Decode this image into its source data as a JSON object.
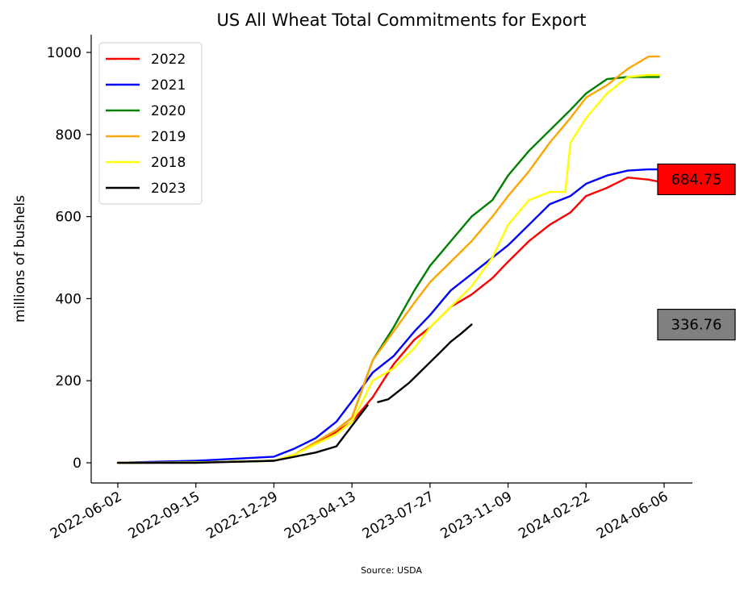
{
  "chart_data": {
    "type": "line",
    "title": "US All Wheat Total Commitments for Export",
    "xlabel": "",
    "ylabel": "millions of bushels",
    "source": "Source: USDA",
    "x_ticks": [
      "2022-06-02",
      "2022-09-15",
      "2022-12-29",
      "2023-04-13",
      "2023-07-27",
      "2023-11-09",
      "2024-02-22",
      "2024-06-06"
    ],
    "ylim": [
      -50,
      1045
    ],
    "yticks": [
      0,
      200,
      400,
      600,
      800,
      1000
    ],
    "legend_position": "upper left",
    "series": [
      {
        "name": "2022",
        "color": "#ff0000",
        "x": [
          "2022-06-02",
          "2022-09-15",
          "2022-12-29",
          "2023-01-26",
          "2023-02-23",
          "2023-03-23",
          "2023-04-13",
          "2023-05-11",
          "2023-06-08",
          "2023-07-06",
          "2023-07-27",
          "2023-08-24",
          "2023-09-21",
          "2023-10-19",
          "2023-11-09",
          "2023-12-07",
          "2024-01-04",
          "2024-02-01",
          "2024-02-22",
          "2024-03-21",
          "2024-04-18",
          "2024-05-16",
          "2024-05-30"
        ],
        "values": [
          0,
          1,
          5,
          20,
          50,
          75,
          100,
          160,
          240,
          300,
          330,
          380,
          410,
          450,
          490,
          540,
          580,
          610,
          650,
          670,
          695,
          690,
          685
        ]
      },
      {
        "name": "2021",
        "color": "#0000ff",
        "x": [
          "2022-06-02",
          "2022-09-15",
          "2022-12-29",
          "2023-01-26",
          "2023-02-23",
          "2023-03-23",
          "2023-04-13",
          "2023-05-11",
          "2023-06-08",
          "2023-07-06",
          "2023-07-27",
          "2023-08-24",
          "2023-09-21",
          "2023-10-19",
          "2023-11-09",
          "2023-12-07",
          "2024-01-04",
          "2024-02-01",
          "2024-02-22",
          "2024-03-21",
          "2024-04-18",
          "2024-05-16",
          "2024-05-30"
        ],
        "values": [
          0,
          5,
          15,
          35,
          60,
          100,
          150,
          220,
          260,
          320,
          360,
          420,
          460,
          500,
          530,
          580,
          630,
          650,
          680,
          700,
          712,
          715,
          715
        ]
      },
      {
        "name": "2020",
        "color": "#008000",
        "x": [
          "2022-06-02",
          "2022-09-15",
          "2022-12-29",
          "2023-01-26",
          "2023-02-23",
          "2023-03-23",
          "2023-04-13",
          "2023-05-11",
          "2023-06-08",
          "2023-07-06",
          "2023-07-27",
          "2023-08-24",
          "2023-09-21",
          "2023-10-19",
          "2023-11-09",
          "2023-12-07",
          "2024-01-04",
          "2024-02-01",
          "2024-02-22",
          "2024-03-21",
          "2024-04-18",
          "2024-05-16",
          "2024-05-30"
        ],
        "values": [
          0,
          1,
          5,
          20,
          50,
          80,
          110,
          250,
          330,
          420,
          480,
          540,
          600,
          640,
          700,
          760,
          810,
          860,
          900,
          935,
          940,
          940,
          940
        ]
      },
      {
        "name": "2019",
        "color": "#ffa500",
        "x": [
          "2022-06-02",
          "2022-09-15",
          "2022-12-29",
          "2023-01-26",
          "2023-02-23",
          "2023-03-23",
          "2023-04-13",
          "2023-05-11",
          "2023-06-08",
          "2023-07-06",
          "2023-07-27",
          "2023-08-24",
          "2023-09-21",
          "2023-10-19",
          "2023-11-09",
          "2023-12-07",
          "2024-01-04",
          "2024-02-01",
          "2024-02-22",
          "2024-03-21",
          "2024-04-18",
          "2024-05-16",
          "2024-05-30"
        ],
        "values": [
          0,
          1,
          5,
          20,
          50,
          80,
          110,
          250,
          320,
          390,
          440,
          490,
          540,
          600,
          650,
          710,
          780,
          840,
          890,
          920,
          960,
          990,
          990
        ]
      },
      {
        "name": "2018",
        "color": "#ffff00",
        "x": [
          "2022-06-02",
          "2022-09-15",
          "2022-12-29",
          "2023-01-26",
          "2023-02-23",
          "2023-03-23",
          "2023-04-13",
          "2023-05-11",
          "2023-06-08",
          "2023-07-06",
          "2023-07-27",
          "2023-08-24",
          "2023-09-21",
          "2023-10-19",
          "2023-11-09",
          "2023-12-07",
          "2024-01-04",
          "2024-01-25",
          "2024-02-01",
          "2024-02-22",
          "2024-03-21",
          "2024-04-18",
          "2024-05-16",
          "2024-05-30"
        ],
        "values": [
          0,
          1,
          5,
          20,
          45,
          70,
          100,
          200,
          230,
          280,
          330,
          380,
          430,
          500,
          580,
          640,
          660,
          660,
          780,
          840,
          900,
          940,
          945,
          945
        ]
      },
      {
        "name": "2023",
        "color": "#000000",
        "x": [
          "2022-06-02",
          "2022-09-15",
          "2022-12-29",
          "2023-01-26",
          "2023-02-23",
          "2023-03-23",
          "2023-04-13",
          "2023-05-04"
        ],
        "values": [
          0,
          0,
          5,
          15,
          25,
          40,
          90,
          140
        ]
      },
      {
        "name": "",
        "legend": false,
        "color": "#000000",
        "x": [
          "2023-05-18",
          "2023-06-01",
          "2023-06-15",
          "2023-06-29",
          "2023-07-13",
          "2023-07-27",
          "2023-08-10",
          "2023-08-24",
          "2023-09-07",
          "2023-09-21"
        ],
        "values": [
          148,
          155,
          175,
          195,
          220,
          245,
          270,
          295,
          315,
          337
        ]
      }
    ],
    "annotations": [
      {
        "text": "684.75",
        "background": "#ff0000",
        "y": 684.75
      },
      {
        "text": "336.76",
        "background": "#808080",
        "y": 336.76
      }
    ]
  }
}
